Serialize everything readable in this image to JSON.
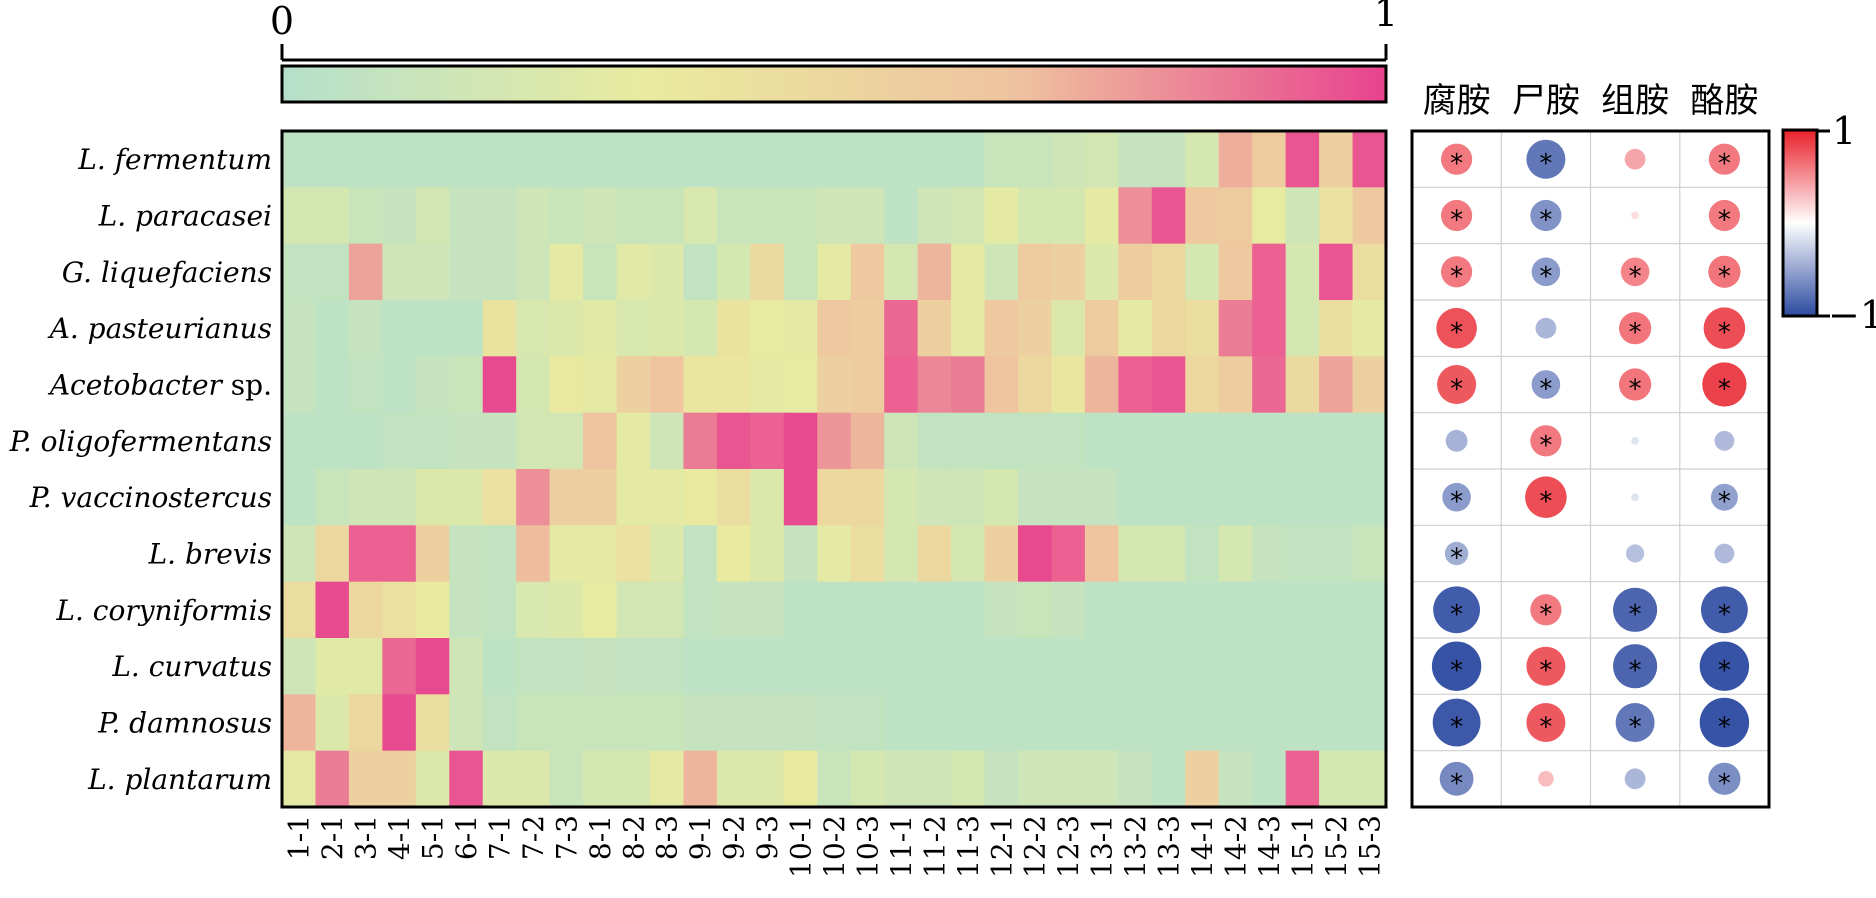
{
  "chart_data": [
    {
      "type": "heatmap",
      "title": "",
      "colorbar": {
        "min_label": "0",
        "max_label": "1",
        "min": 0,
        "max": 1,
        "colors": [
          "#b6e0cb",
          "#e9eb9f",
          "#efc29f",
          "#e8428e"
        ]
      },
      "columns": [
        "1-1",
        "2-1",
        "3-1",
        "4-1",
        "5-1",
        "6-1",
        "7-1",
        "7-2",
        "7-3",
        "8-1",
        "8-2",
        "8-3",
        "9-1",
        "9-2",
        "9-3",
        "10-1",
        "10-2",
        "10-3",
        "11-1",
        "11-2",
        "11-3",
        "12-1",
        "12-2",
        "12-3",
        "13-1",
        "13-2",
        "13-3",
        "14-1",
        "14-2",
        "14-3",
        "15-1",
        "15-2",
        "15-3"
      ],
      "rows": [
        {
          "label": "L. fermentum",
          "values": [
            0.05,
            0.05,
            0.05,
            0.05,
            0.05,
            0.05,
            0.05,
            0.05,
            0.05,
            0.05,
            0.05,
            0.05,
            0.05,
            0.05,
            0.05,
            0.05,
            0.05,
            0.05,
            0.05,
            0.05,
            0.05,
            0.12,
            0.12,
            0.15,
            0.18,
            0.1,
            0.1,
            0.2,
            0.72,
            0.6,
            0.95,
            0.55,
            0.95
          ]
        },
        {
          "label": "L. paracasei",
          "values": [
            0.2,
            0.2,
            0.12,
            0.1,
            0.18,
            0.1,
            0.1,
            0.15,
            0.12,
            0.15,
            0.12,
            0.12,
            0.22,
            0.12,
            0.12,
            0.12,
            0.15,
            0.15,
            0.05,
            0.15,
            0.18,
            0.3,
            0.2,
            0.2,
            0.3,
            0.8,
            0.95,
            0.62,
            0.6,
            0.32,
            0.15,
            0.42,
            0.62
          ]
        },
        {
          "label": "G. liquefaciens",
          "values": [
            0.08,
            0.08,
            0.75,
            0.15,
            0.15,
            0.1,
            0.1,
            0.15,
            0.3,
            0.12,
            0.28,
            0.25,
            0.08,
            0.2,
            0.48,
            0.12,
            0.3,
            0.62,
            0.2,
            0.7,
            0.3,
            0.15,
            0.6,
            0.55,
            0.25,
            0.58,
            0.5,
            0.2,
            0.62,
            0.92,
            0.2,
            0.95,
            0.45
          ]
        },
        {
          "label": "A. pasteurianus",
          "values": [
            0.1,
            0.05,
            0.1,
            0.05,
            0.05,
            0.05,
            0.4,
            0.22,
            0.25,
            0.28,
            0.22,
            0.25,
            0.2,
            0.4,
            0.32,
            0.3,
            0.62,
            0.58,
            0.9,
            0.55,
            0.3,
            0.62,
            0.55,
            0.25,
            0.6,
            0.3,
            0.5,
            0.45,
            0.85,
            0.92,
            0.2,
            0.45,
            0.3
          ]
        },
        {
          "label": "Acetobacter sp.",
          "values": [
            0.1,
            0.05,
            0.08,
            0.05,
            0.1,
            0.12,
            0.98,
            0.2,
            0.35,
            0.3,
            0.55,
            0.65,
            0.38,
            0.38,
            0.3,
            0.32,
            0.55,
            0.58,
            0.92,
            0.82,
            0.85,
            0.65,
            0.5,
            0.38,
            0.7,
            0.92,
            0.95,
            0.5,
            0.58,
            0.9,
            0.48,
            0.75,
            0.55
          ]
        },
        {
          "label": "P. oligofermentans",
          "values": [
            0.05,
            0.05,
            0.05,
            0.08,
            0.08,
            0.1,
            0.1,
            0.18,
            0.18,
            0.65,
            0.3,
            0.15,
            0.85,
            0.95,
            0.92,
            0.98,
            0.78,
            0.7,
            0.15,
            0.08,
            0.08,
            0.08,
            0.08,
            0.08,
            0.05,
            0.05,
            0.05,
            0.05,
            0.05,
            0.05,
            0.05,
            0.05,
            0.05
          ]
        },
        {
          "label": "P. vaccinostercus",
          "values": [
            0.05,
            0.12,
            0.15,
            0.15,
            0.25,
            0.25,
            0.42,
            0.8,
            0.55,
            0.55,
            0.3,
            0.3,
            0.35,
            0.45,
            0.25,
            0.98,
            0.5,
            0.5,
            0.2,
            0.15,
            0.15,
            0.2,
            0.1,
            0.1,
            0.1,
            0.05,
            0.05,
            0.05,
            0.05,
            0.05,
            0.05,
            0.05,
            0.05
          ]
        },
        {
          "label": "L. brevis",
          "values": [
            0.15,
            0.5,
            0.92,
            0.92,
            0.55,
            0.1,
            0.08,
            0.68,
            0.3,
            0.3,
            0.42,
            0.25,
            0.08,
            0.35,
            0.25,
            0.1,
            0.3,
            0.45,
            0.2,
            0.5,
            0.2,
            0.55,
            0.98,
            0.92,
            0.65,
            0.2,
            0.2,
            0.08,
            0.2,
            0.1,
            0.08,
            0.08,
            0.12
          ]
        },
        {
          "label": "L. coryniformis",
          "values": [
            0.45,
            0.98,
            0.5,
            0.42,
            0.35,
            0.1,
            0.08,
            0.22,
            0.25,
            0.32,
            0.18,
            0.18,
            0.08,
            0.1,
            0.1,
            0.05,
            0.05,
            0.05,
            0.05,
            0.05,
            0.05,
            0.1,
            0.12,
            0.1,
            0.05,
            0.05,
            0.05,
            0.05,
            0.05,
            0.05,
            0.05,
            0.05,
            0.05
          ]
        },
        {
          "label": "L. curvatus",
          "values": [
            0.15,
            0.28,
            0.28,
            0.9,
            0.98,
            0.15,
            0.05,
            0.08,
            0.08,
            0.1,
            0.08,
            0.08,
            0.05,
            0.05,
            0.05,
            0.05,
            0.05,
            0.05,
            0.05,
            0.05,
            0.05,
            0.05,
            0.05,
            0.05,
            0.05,
            0.05,
            0.05,
            0.05,
            0.05,
            0.05,
            0.05,
            0.05,
            0.05
          ]
        },
        {
          "label": "P. damnosus",
          "values": [
            0.7,
            0.25,
            0.5,
            0.98,
            0.45,
            0.15,
            0.08,
            0.12,
            0.12,
            0.12,
            0.12,
            0.12,
            0.1,
            0.1,
            0.1,
            0.1,
            0.08,
            0.08,
            0.05,
            0.05,
            0.05,
            0.05,
            0.05,
            0.05,
            0.05,
            0.05,
            0.05,
            0.05,
            0.05,
            0.05,
            0.05,
            0.05,
            0.05
          ]
        },
        {
          "label": "L. plantarum",
          "values": [
            0.3,
            0.85,
            0.55,
            0.55,
            0.25,
            0.95,
            0.25,
            0.25,
            0.12,
            0.2,
            0.2,
            0.3,
            0.7,
            0.25,
            0.25,
            0.35,
            0.12,
            0.2,
            0.15,
            0.15,
            0.2,
            0.1,
            0.15,
            0.15,
            0.15,
            0.1,
            0.05,
            0.55,
            0.1,
            0.05,
            0.92,
            0.2,
            0.2
          ]
        }
      ]
    },
    {
      "type": "heatmap",
      "title": "",
      "columns": [
        "腐胺",
        "尸胺",
        "组胺",
        "酪胺"
      ],
      "colorbar": {
        "min_label": "−1",
        "max_label": "1",
        "min": -1,
        "max": 1,
        "colors": [
          "#2c4aa0",
          "#ffffff",
          "#e8202a"
        ]
      },
      "rows": [
        {
          "label": "L. fermentum",
          "values": [
            0.6,
            -0.75,
            0.4,
            0.6
          ],
          "significant": [
            true,
            true,
            false,
            true
          ]
        },
        {
          "label": "L. paracasei",
          "values": [
            0.6,
            -0.6,
            0.15,
            0.6
          ],
          "significant": [
            true,
            true,
            false,
            true
          ]
        },
        {
          "label": "G. liquefaciens",
          "values": [
            0.6,
            -0.55,
            0.55,
            0.62
          ],
          "significant": [
            true,
            true,
            true,
            true
          ]
        },
        {
          "label": "A. pasteurianus",
          "values": [
            0.78,
            -0.4,
            0.62,
            0.8
          ],
          "significant": [
            true,
            false,
            true,
            true
          ]
        },
        {
          "label": "Acetobacter sp.",
          "values": [
            0.75,
            -0.55,
            0.62,
            0.85
          ],
          "significant": [
            true,
            true,
            true,
            true
          ]
        },
        {
          "label": "P. oligofermentans",
          "values": [
            -0.42,
            0.6,
            -0.15,
            -0.38
          ],
          "significant": [
            false,
            true,
            false,
            false
          ]
        },
        {
          "label": "P. vaccinostercus",
          "values": [
            -0.55,
            0.8,
            -0.15,
            -0.52
          ],
          "significant": [
            true,
            true,
            false,
            true
          ]
        },
        {
          "label": "L. brevis",
          "values": [
            -0.45,
            0.0,
            -0.35,
            -0.38
          ],
          "significant": [
            true,
            false,
            false,
            false
          ]
        },
        {
          "label": "L. coryniformis",
          "values": [
            -0.9,
            0.6,
            -0.85,
            -0.9
          ],
          "significant": [
            true,
            true,
            true,
            true
          ]
        },
        {
          "label": "L. curvatus",
          "values": [
            -0.95,
            0.75,
            -0.85,
            -0.95
          ],
          "significant": [
            true,
            true,
            true,
            true
          ]
        },
        {
          "label": "P. damnosus",
          "values": [
            -0.92,
            0.75,
            -0.75,
            -0.95
          ],
          "significant": [
            true,
            true,
            true,
            true
          ]
        },
        {
          "label": "L. plantarum",
          "values": [
            -0.65,
            0.3,
            -0.4,
            -0.62
          ],
          "significant": [
            true,
            false,
            false,
            true
          ]
        }
      ]
    }
  ],
  "sig_marker": "*"
}
